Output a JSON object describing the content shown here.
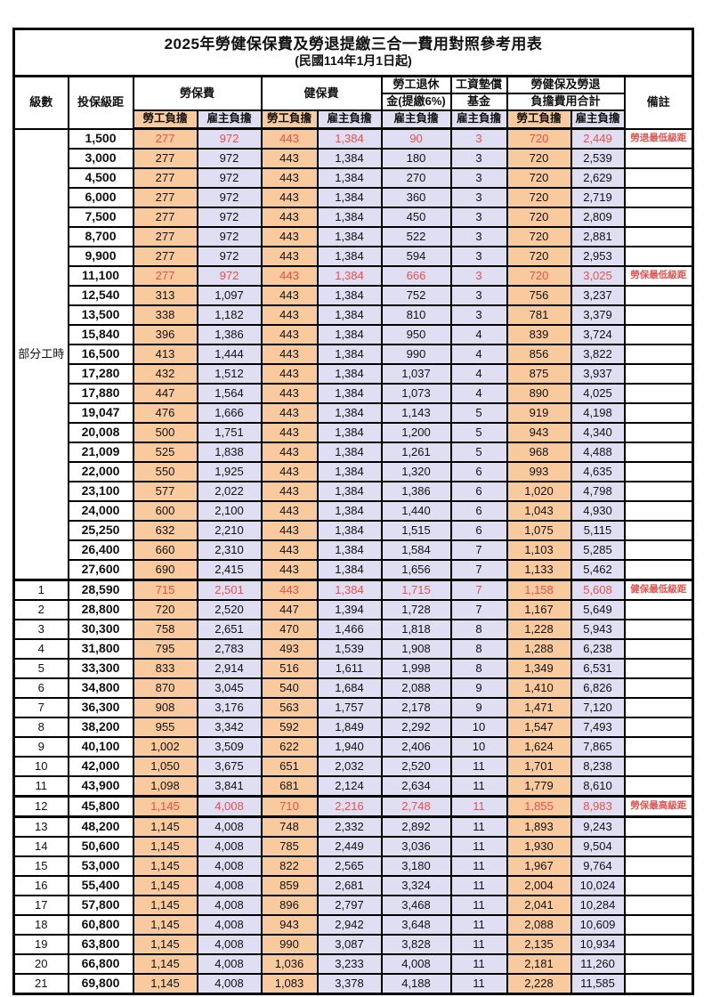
{
  "title": "2025年勞健保保費及勞退提繳三合一費用對照參考用表",
  "subtitle": "(民國114年1月1日起)",
  "header": {
    "level": "級數",
    "salary_bracket": "投保級距",
    "labor_insurance": "勞保費",
    "health_insurance": "健保費",
    "pension_line1": "勞工退休",
    "pension_line2": "金(提繳6%)",
    "wage_fund_line1": "工資墊償",
    "wage_fund_line2": "基金",
    "total_line1": "勞健保及勞退",
    "total_line2": "負擔費用合計",
    "employee": "勞工負擔",
    "employer": "雇主負擔",
    "remark": "備註"
  },
  "part_time_label": "部分工時",
  "colors": {
    "employee_bg": "#F8CA9E",
    "employer_bg": "#E0DEF2",
    "highlight_text": "#E8514D",
    "border": "#000000"
  },
  "rows": [
    [
      "",
      "1,500",
      "277",
      "972",
      "443",
      "1,384",
      "90",
      "3",
      "720",
      "2,449",
      "勞退最低級距",
      1
    ],
    [
      "",
      "3,000",
      "277",
      "972",
      "443",
      "1,384",
      "180",
      "3",
      "720",
      "2,539",
      "",
      0
    ],
    [
      "",
      "4,500",
      "277",
      "972",
      "443",
      "1,384",
      "270",
      "3",
      "720",
      "2,629",
      "",
      0
    ],
    [
      "",
      "6,000",
      "277",
      "972",
      "443",
      "1,384",
      "360",
      "3",
      "720",
      "2,719",
      "",
      0
    ],
    [
      "",
      "7,500",
      "277",
      "972",
      "443",
      "1,384",
      "450",
      "3",
      "720",
      "2,809",
      "",
      0
    ],
    [
      "",
      "8,700",
      "277",
      "972",
      "443",
      "1,384",
      "522",
      "3",
      "720",
      "2,881",
      "",
      0
    ],
    [
      "",
      "9,900",
      "277",
      "972",
      "443",
      "1,384",
      "594",
      "3",
      "720",
      "2,953",
      "",
      0
    ],
    [
      "",
      "11,100",
      "277",
      "972",
      "443",
      "1,384",
      "666",
      "3",
      "720",
      "3,025",
      "勞保最低級距",
      1
    ],
    [
      "",
      "12,540",
      "313",
      "1,097",
      "443",
      "1,384",
      "752",
      "3",
      "756",
      "3,237",
      "",
      0
    ],
    [
      "",
      "13,500",
      "338",
      "1,182",
      "443",
      "1,384",
      "810",
      "3",
      "781",
      "3,379",
      "",
      0
    ],
    [
      "",
      "15,840",
      "396",
      "1,386",
      "443",
      "1,384",
      "950",
      "4",
      "839",
      "3,724",
      "",
      0
    ],
    [
      "",
      "16,500",
      "413",
      "1,444",
      "443",
      "1,384",
      "990",
      "4",
      "856",
      "3,822",
      "",
      0
    ],
    [
      "",
      "17,280",
      "432",
      "1,512",
      "443",
      "1,384",
      "1,037",
      "4",
      "875",
      "3,937",
      "",
      0
    ],
    [
      "",
      "17,880",
      "447",
      "1,564",
      "443",
      "1,384",
      "1,073",
      "4",
      "890",
      "4,025",
      "",
      0
    ],
    [
      "",
      "19,047",
      "476",
      "1,666",
      "443",
      "1,384",
      "1,143",
      "5",
      "919",
      "4,198",
      "",
      0
    ],
    [
      "",
      "20,008",
      "500",
      "1,751",
      "443",
      "1,384",
      "1,200",
      "5",
      "943",
      "4,340",
      "",
      0
    ],
    [
      "",
      "21,009",
      "525",
      "1,838",
      "443",
      "1,384",
      "1,261",
      "5",
      "968",
      "4,488",
      "",
      0
    ],
    [
      "",
      "22,000",
      "550",
      "1,925",
      "443",
      "1,384",
      "1,320",
      "6",
      "993",
      "4,635",
      "",
      0
    ],
    [
      "",
      "23,100",
      "577",
      "2,022",
      "443",
      "1,384",
      "1,386",
      "6",
      "1,020",
      "4,798",
      "",
      0
    ],
    [
      "",
      "24,000",
      "600",
      "2,100",
      "443",
      "1,384",
      "1,440",
      "6",
      "1,043",
      "4,930",
      "",
      0
    ],
    [
      "",
      "25,250",
      "632",
      "2,210",
      "443",
      "1,384",
      "1,515",
      "6",
      "1,075",
      "5,115",
      "",
      0
    ],
    [
      "",
      "26,400",
      "660",
      "2,310",
      "443",
      "1,384",
      "1,584",
      "7",
      "1,103",
      "5,285",
      "",
      0
    ],
    [
      "",
      "27,600",
      "690",
      "2,415",
      "443",
      "1,384",
      "1,656",
      "7",
      "1,133",
      "5,462",
      "",
      0
    ],
    [
      "1",
      "28,590",
      "715",
      "2,501",
      "443",
      "1,384",
      "1,715",
      "7",
      "1,158",
      "5,608",
      "健保最低級距",
      1
    ],
    [
      "2",
      "28,800",
      "720",
      "2,520",
      "447",
      "1,394",
      "1,728",
      "7",
      "1,167",
      "5,649",
      "",
      0
    ],
    [
      "3",
      "30,300",
      "758",
      "2,651",
      "470",
      "1,466",
      "1,818",
      "8",
      "1,228",
      "5,943",
      "",
      0
    ],
    [
      "4",
      "31,800",
      "795",
      "2,783",
      "493",
      "1,539",
      "1,908",
      "8",
      "1,288",
      "6,238",
      "",
      0
    ],
    [
      "5",
      "33,300",
      "833",
      "2,914",
      "516",
      "1,611",
      "1,998",
      "8",
      "1,349",
      "6,531",
      "",
      0
    ],
    [
      "6",
      "34,800",
      "870",
      "3,045",
      "540",
      "1,684",
      "2,088",
      "9",
      "1,410",
      "6,826",
      "",
      0
    ],
    [
      "7",
      "36,300",
      "908",
      "3,176",
      "563",
      "1,757",
      "2,178",
      "9",
      "1,471",
      "7,120",
      "",
      0
    ],
    [
      "8",
      "38,200",
      "955",
      "3,342",
      "592",
      "1,849",
      "2,292",
      "10",
      "1,547",
      "7,493",
      "",
      0
    ],
    [
      "9",
      "40,100",
      "1,002",
      "3,509",
      "622",
      "1,940",
      "2,406",
      "10",
      "1,624",
      "7,865",
      "",
      0
    ],
    [
      "10",
      "42,000",
      "1,050",
      "3,675",
      "651",
      "2,032",
      "2,520",
      "11",
      "1,701",
      "8,238",
      "",
      0
    ],
    [
      "11",
      "43,900",
      "1,098",
      "3,841",
      "681",
      "2,124",
      "2,634",
      "11",
      "1,779",
      "8,610",
      "",
      0
    ],
    [
      "12",
      "45,800",
      "1,145",
      "4,008",
      "710",
      "2,216",
      "2,748",
      "11",
      "1,855",
      "8,983",
      "勞保最高級距",
      1
    ],
    [
      "13",
      "48,200",
      "1,145",
      "4,008",
      "748",
      "2,332",
      "2,892",
      "11",
      "1,893",
      "9,243",
      "",
      0
    ],
    [
      "14",
      "50,600",
      "1,145",
      "4,008",
      "785",
      "2,449",
      "3,036",
      "11",
      "1,930",
      "9,504",
      "",
      0
    ],
    [
      "15",
      "53,000",
      "1,145",
      "4,008",
      "822",
      "2,565",
      "3,180",
      "11",
      "1,967",
      "9,764",
      "",
      0
    ],
    [
      "16",
      "55,400",
      "1,145",
      "4,008",
      "859",
      "2,681",
      "3,324",
      "11",
      "2,004",
      "10,024",
      "",
      0
    ],
    [
      "17",
      "57,800",
      "1,145",
      "4,008",
      "896",
      "2,797",
      "3,468",
      "11",
      "2,041",
      "10,284",
      "",
      0
    ],
    [
      "18",
      "60,800",
      "1,145",
      "4,008",
      "943",
      "2,942",
      "3,648",
      "11",
      "2,088",
      "10,609",
      "",
      0
    ],
    [
      "19",
      "63,800",
      "1,145",
      "4,008",
      "990",
      "3,087",
      "3,828",
      "11",
      "2,135",
      "10,934",
      "",
      0
    ],
    [
      "20",
      "66,800",
      "1,145",
      "4,008",
      "1,036",
      "3,233",
      "4,008",
      "11",
      "2,181",
      "11,260",
      "",
      0
    ],
    [
      "21",
      "69,800",
      "1,145",
      "4,008",
      "1,083",
      "3,378",
      "4,188",
      "11",
      "2,228",
      "11,585",
      "",
      0
    ]
  ]
}
